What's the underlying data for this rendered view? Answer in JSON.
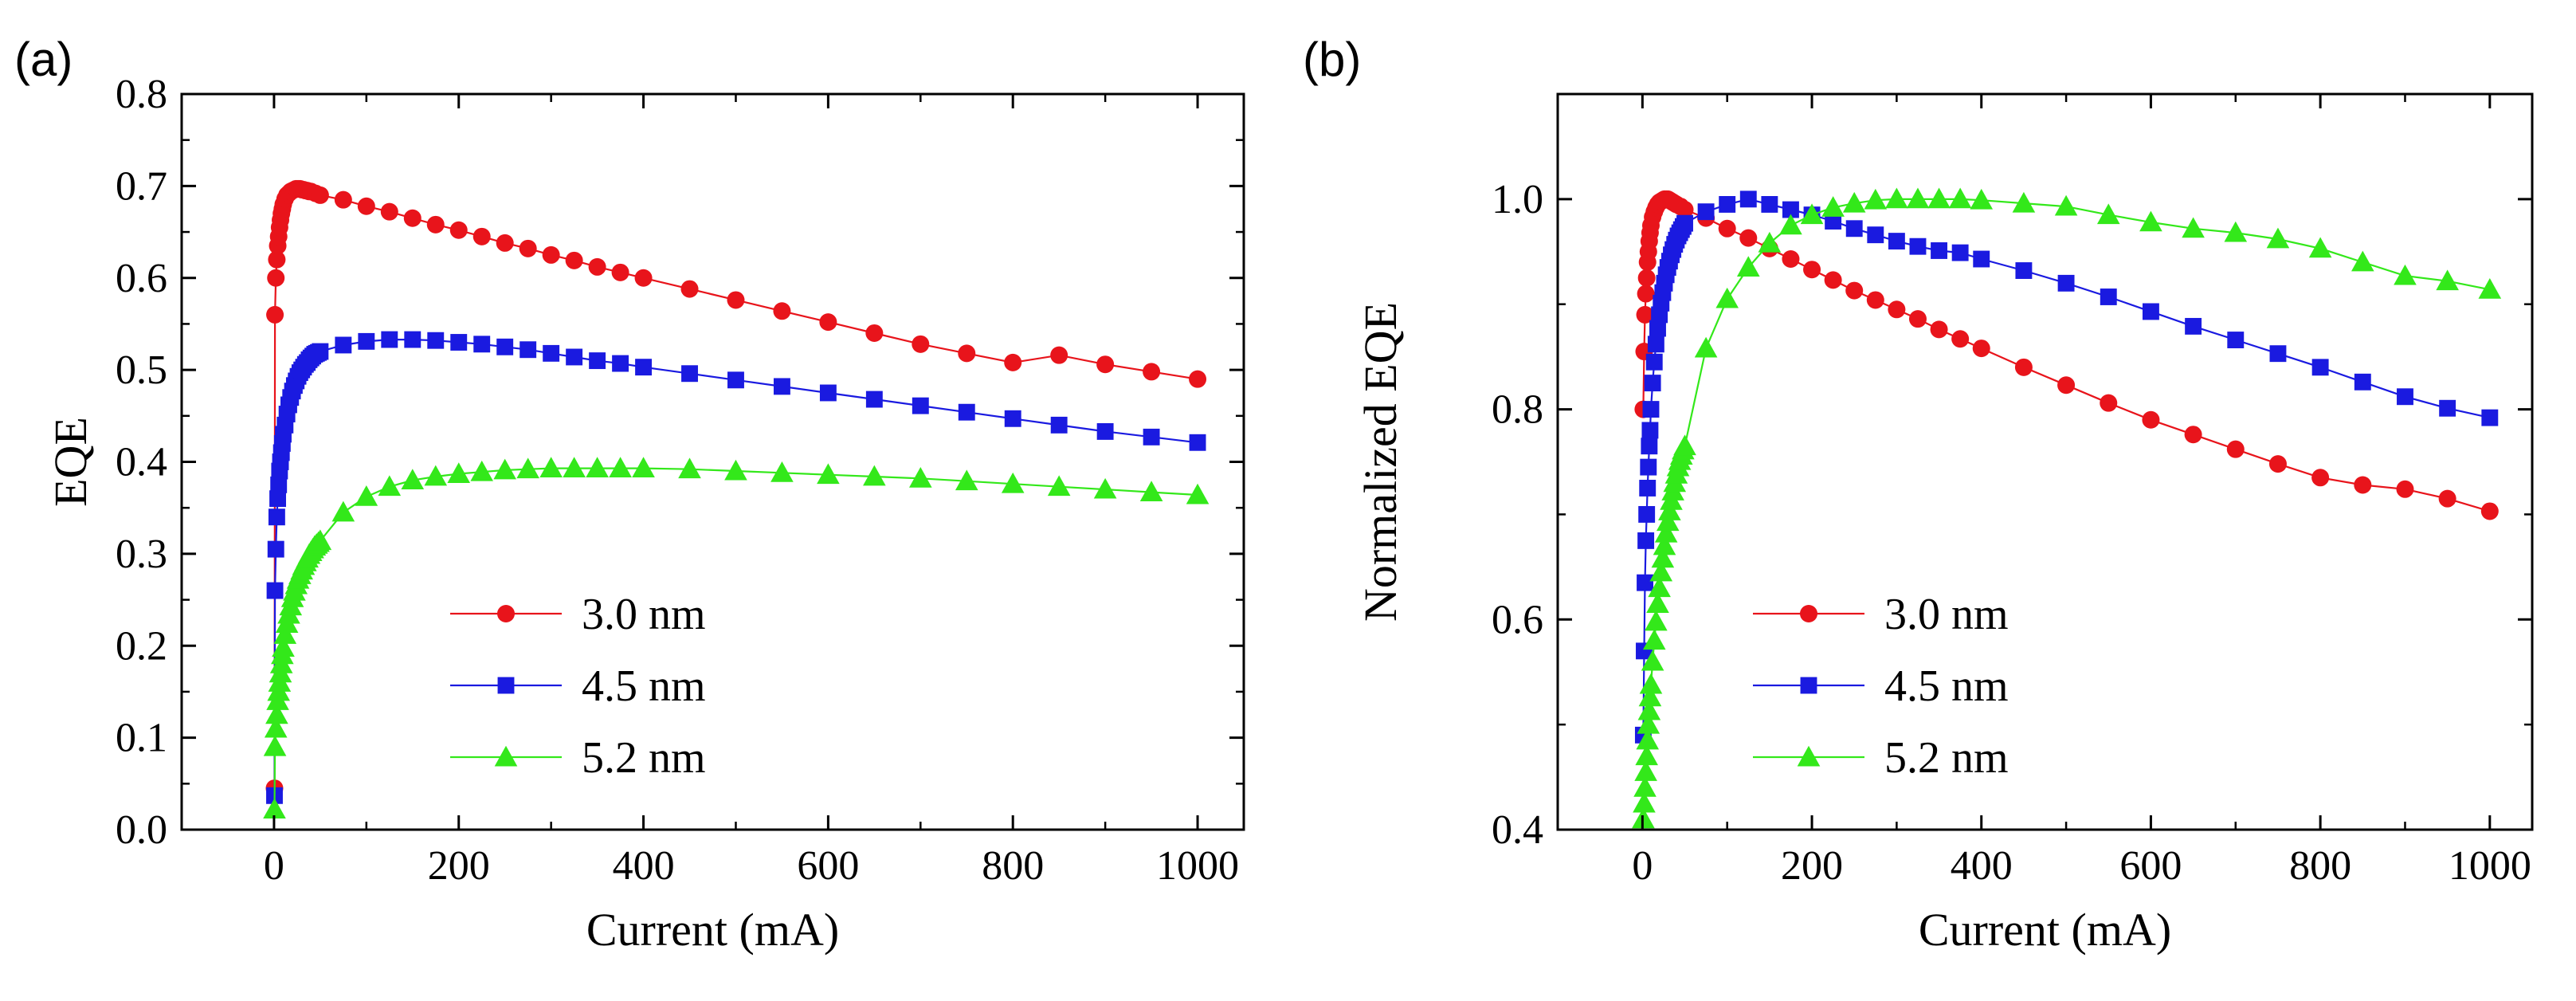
{
  "colors": {
    "red": "#e8141b",
    "blue": "#1a1ae0",
    "green": "#33e81a",
    "axis": "#000000"
  },
  "chart_data": [
    {
      "type": "line",
      "panel_label": "(a)",
      "xlabel": "Current (mA)",
      "ylabel": "EQE",
      "xlim": [
        -100,
        1050
      ],
      "ylim": [
        0.0,
        0.8
      ],
      "xticks": [
        0,
        200,
        400,
        600,
        800,
        1000
      ],
      "yticks": [
        0.0,
        0.1,
        0.2,
        0.3,
        0.4,
        0.5,
        0.6,
        0.7,
        0.8
      ],
      "ytick_labels": [
        "0.0",
        "0.1",
        "0.2",
        "0.3",
        "0.4",
        "0.5",
        "0.6",
        "0.7",
        "0.8"
      ],
      "legend_position": "bottom-center",
      "series": [
        {
          "name": "3.0 nm",
          "color": "red",
          "marker": "circle",
          "x": [
            0.5,
            1,
            2,
            3,
            4,
            5,
            6,
            7,
            8,
            9,
            10,
            12,
            14,
            16,
            18,
            20,
            22,
            24,
            26,
            28,
            30,
            32,
            34,
            36,
            38,
            40,
            45,
            50,
            75,
            100,
            125,
            150,
            175,
            200,
            225,
            250,
            275,
            300,
            325,
            350,
            375,
            400,
            450,
            500,
            550,
            600,
            650,
            700,
            750,
            800,
            850,
            900,
            950,
            1000
          ],
          "y": [
            0.045,
            0.56,
            0.6,
            0.62,
            0.635,
            0.645,
            0.655,
            0.663,
            0.67,
            0.675,
            0.68,
            0.686,
            0.69,
            0.692,
            0.694,
            0.695,
            0.696,
            0.697,
            0.697,
            0.697,
            0.696,
            0.696,
            0.695,
            0.695,
            0.694,
            0.694,
            0.692,
            0.69,
            0.685,
            0.678,
            0.672,
            0.665,
            0.658,
            0.652,
            0.645,
            0.638,
            0.632,
            0.625,
            0.619,
            0.612,
            0.606,
            0.6,
            0.588,
            0.576,
            0.564,
            0.552,
            0.54,
            0.528,
            0.518,
            0.508,
            0.516,
            0.506,
            0.498,
            0.49
          ]
        },
        {
          "name": "4.5 nm",
          "color": "blue",
          "marker": "square",
          "x": [
            0.5,
            1,
            2,
            3,
            4,
            5,
            6,
            7,
            8,
            9,
            10,
            12,
            14,
            16,
            18,
            20,
            22,
            24,
            26,
            28,
            30,
            32,
            34,
            36,
            38,
            40,
            42,
            44,
            46,
            48,
            50,
            75,
            100,
            125,
            150,
            175,
            200,
            225,
            250,
            275,
            300,
            325,
            350,
            375,
            400,
            450,
            500,
            550,
            600,
            650,
            700,
            750,
            800,
            850,
            900,
            950,
            1000
          ],
          "y": [
            0.037,
            0.26,
            0.305,
            0.34,
            0.36,
            0.375,
            0.39,
            0.4,
            0.41,
            0.42,
            0.43,
            0.44,
            0.452,
            0.462,
            0.47,
            0.477,
            0.483,
            0.488,
            0.493,
            0.497,
            0.5,
            0.503,
            0.506,
            0.508,
            0.511,
            0.513,
            0.515,
            0.517,
            0.518,
            0.519,
            0.52,
            0.527,
            0.531,
            0.533,
            0.533,
            0.532,
            0.53,
            0.528,
            0.525,
            0.522,
            0.518,
            0.514,
            0.51,
            0.507,
            0.503,
            0.496,
            0.489,
            0.482,
            0.475,
            0.468,
            0.461,
            0.454,
            0.447,
            0.44,
            0.433,
            0.427,
            0.421
          ]
        },
        {
          "name": "5.2 nm",
          "color": "green",
          "marker": "triangle",
          "x": [
            0.5,
            1,
            2,
            3,
            4,
            5,
            6,
            7,
            8,
            9,
            10,
            12,
            14,
            16,
            18,
            20,
            22,
            24,
            26,
            28,
            30,
            32,
            34,
            36,
            38,
            40,
            42,
            44,
            46,
            48,
            50,
            75,
            100,
            125,
            150,
            175,
            200,
            225,
            250,
            275,
            300,
            325,
            350,
            375,
            400,
            450,
            500,
            550,
            600,
            650,
            700,
            750,
            800,
            850,
            900,
            950,
            1000
          ],
          "y": [
            0.022,
            0.09,
            0.11,
            0.125,
            0.14,
            0.15,
            0.16,
            0.17,
            0.18,
            0.19,
            0.198,
            0.212,
            0.224,
            0.234,
            0.243,
            0.252,
            0.259,
            0.266,
            0.272,
            0.277,
            0.282,
            0.287,
            0.291,
            0.295,
            0.299,
            0.302,
            0.305,
            0.308,
            0.31,
            0.312,
            0.314,
            0.345,
            0.362,
            0.373,
            0.38,
            0.384,
            0.387,
            0.389,
            0.391,
            0.392,
            0.393,
            0.393,
            0.393,
            0.393,
            0.393,
            0.392,
            0.39,
            0.388,
            0.386,
            0.384,
            0.382,
            0.379,
            0.376,
            0.373,
            0.37,
            0.367,
            0.364
          ]
        }
      ]
    },
    {
      "type": "line",
      "panel_label": "(b)",
      "xlabel": "Current (mA)",
      "ylabel": "Normalized EQE",
      "xlim": [
        -100,
        1050
      ],
      "ylim": [
        0.4,
        1.1
      ],
      "xticks": [
        0,
        200,
        400,
        600,
        800,
        1000
      ],
      "yticks": [
        0.4,
        0.6,
        0.8,
        1.0
      ],
      "ytick_labels": [
        "0.4",
        "0.6",
        "0.8",
        "1.0"
      ],
      "legend_position": "bottom-center",
      "series": [
        {
          "name": "3.0 nm",
          "color": "red",
          "marker": "circle",
          "x": [
            1,
            2,
            3,
            4,
            5,
            6,
            7,
            8,
            9,
            10,
            12,
            14,
            16,
            18,
            20,
            22,
            24,
            26,
            28,
            30,
            32,
            34,
            36,
            38,
            40,
            45,
            50,
            75,
            100,
            125,
            150,
            175,
            200,
            225,
            250,
            275,
            300,
            325,
            350,
            375,
            400,
            450,
            500,
            550,
            600,
            650,
            700,
            750,
            800,
            850,
            900,
            950,
            1000
          ],
          "y": [
            0.8,
            0.855,
            0.89,
            0.91,
            0.925,
            0.94,
            0.95,
            0.96,
            0.968,
            0.975,
            0.983,
            0.988,
            0.992,
            0.995,
            0.997,
            0.998,
            0.999,
            1.0,
            1.0,
            1.0,
            0.999,
            0.998,
            0.997,
            0.996,
            0.995,
            0.993,
            0.99,
            0.982,
            0.972,
            0.963,
            0.953,
            0.943,
            0.933,
            0.923,
            0.913,
            0.904,
            0.895,
            0.886,
            0.876,
            0.867,
            0.858,
            0.84,
            0.823,
            0.806,
            0.79,
            0.776,
            0.762,
            0.748,
            0.735,
            0.728,
            0.724,
            0.715,
            0.703
          ]
        },
        {
          "name": "4.5 nm",
          "color": "blue",
          "marker": "square",
          "x": [
            1,
            2,
            3,
            4,
            5,
            6,
            7,
            8,
            9,
            10,
            12,
            14,
            16,
            18,
            20,
            22,
            24,
            26,
            28,
            30,
            32,
            34,
            36,
            38,
            40,
            42,
            44,
            46,
            48,
            50,
            75,
            100,
            125,
            150,
            175,
            200,
            225,
            250,
            275,
            300,
            325,
            350,
            375,
            400,
            450,
            500,
            550,
            600,
            650,
            700,
            750,
            800,
            850,
            900,
            950,
            1000
          ],
          "y": [
            0.49,
            0.57,
            0.635,
            0.675,
            0.7,
            0.725,
            0.745,
            0.765,
            0.78,
            0.8,
            0.825,
            0.845,
            0.862,
            0.877,
            0.89,
            0.901,
            0.911,
            0.92,
            0.928,
            0.935,
            0.941,
            0.947,
            0.952,
            0.957,
            0.961,
            0.965,
            0.968,
            0.971,
            0.974,
            0.977,
            0.988,
            0.995,
            1.0,
            0.995,
            0.99,
            0.985,
            0.979,
            0.972,
            0.966,
            0.96,
            0.955,
            0.951,
            0.949,
            0.943,
            0.932,
            0.92,
            0.907,
            0.893,
            0.879,
            0.866,
            0.853,
            0.84,
            0.826,
            0.812,
            0.801,
            0.792
          ]
        },
        {
          "name": "5.2 nm",
          "color": "green",
          "marker": "triangle",
          "x": [
            1,
            2,
            3,
            4,
            5,
            6,
            7,
            8,
            9,
            10,
            12,
            14,
            16,
            18,
            20,
            22,
            24,
            26,
            28,
            30,
            32,
            34,
            36,
            38,
            40,
            42,
            44,
            46,
            48,
            50,
            75,
            100,
            125,
            150,
            175,
            200,
            225,
            250,
            275,
            300,
            325,
            350,
            375,
            400,
            450,
            500,
            550,
            600,
            650,
            700,
            750,
            800,
            850,
            900,
            950,
            1000
          ],
          "y": [
            0.41,
            0.425,
            0.44,
            0.455,
            0.47,
            0.485,
            0.5,
            0.513,
            0.526,
            0.538,
            0.56,
            0.58,
            0.598,
            0.615,
            0.63,
            0.645,
            0.658,
            0.67,
            0.682,
            0.693,
            0.703,
            0.713,
            0.722,
            0.73,
            0.738,
            0.745,
            0.751,
            0.756,
            0.761,
            0.765,
            0.858,
            0.905,
            0.935,
            0.958,
            0.975,
            0.985,
            0.992,
            0.996,
            0.999,
            1.0,
            1.0,
            1.0,
            1.0,
            0.999,
            0.996,
            0.993,
            0.985,
            0.978,
            0.972,
            0.968,
            0.962,
            0.953,
            0.94,
            0.927,
            0.922,
            0.914
          ]
        }
      ]
    }
  ]
}
